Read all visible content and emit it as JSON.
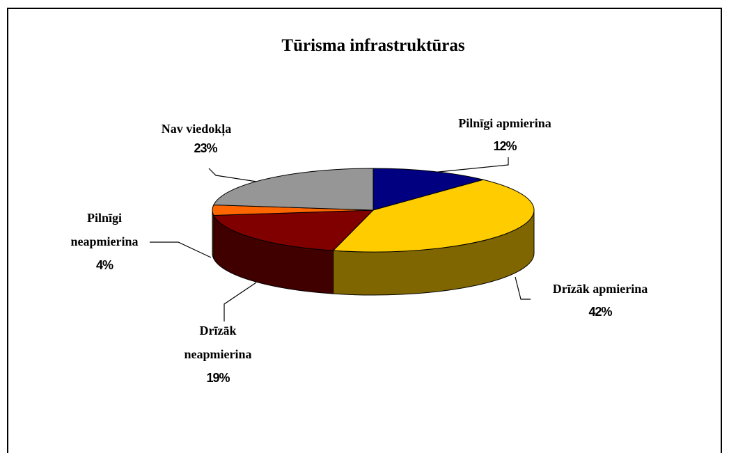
{
  "chart_data": {
    "type": "pie3d",
    "title": "Tūrisma infrastruktūras",
    "categories": [
      "Pilnīgi apmierina",
      "Drīzāk apmierina",
      "Drīzāk neapmierina",
      "Pilnīgi neapmierina",
      "Nav viedokļa"
    ],
    "values": [
      12,
      42,
      19,
      4,
      23
    ],
    "value_labels": [
      "12%",
      "42%",
      "19%",
      "4%",
      "23%"
    ],
    "colors": [
      "#000080",
      "#ffcc00",
      "#800000",
      "#ff6600",
      "#969696"
    ]
  }
}
